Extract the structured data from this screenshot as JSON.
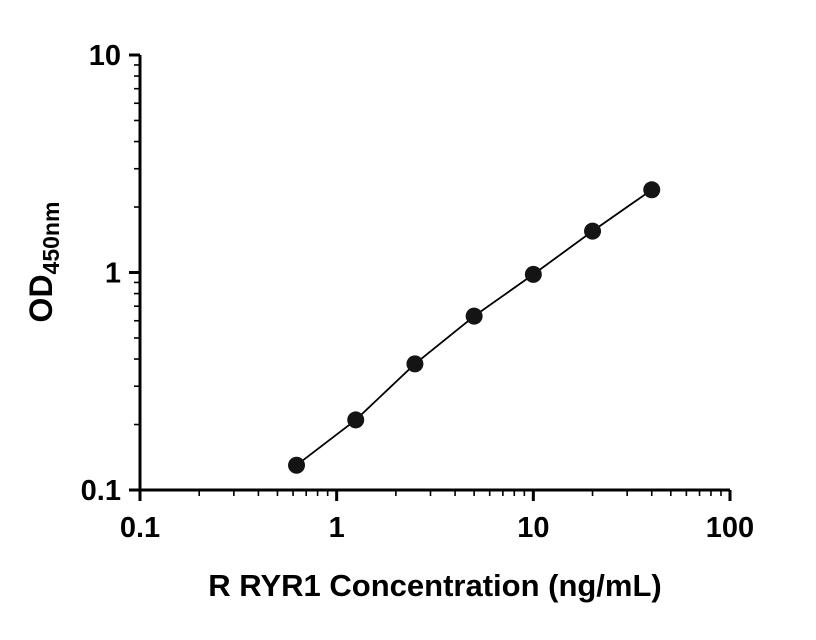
{
  "chart_data": {
    "type": "scatter",
    "title": "",
    "xlabel": "R RYR1 Concentration (ng/mL)",
    "ylabel_main": "OD",
    "ylabel_sub": "450nm",
    "xscale": "log",
    "yscale": "log",
    "xlim": [
      0.1,
      100
    ],
    "ylim": [
      0.1,
      10
    ],
    "grid": false,
    "legend": "none",
    "x": [
      0.625,
      1.25,
      2.5,
      5,
      10,
      20,
      40
    ],
    "y": [
      0.13,
      0.21,
      0.38,
      0.63,
      0.98,
      1.55,
      2.4
    ],
    "x_ticks": [
      {
        "v": 0.1,
        "label": "0.1"
      },
      {
        "v": 1,
        "label": "1"
      },
      {
        "v": 10,
        "label": "10"
      },
      {
        "v": 100,
        "label": "100"
      }
    ],
    "y_ticks": [
      {
        "v": 0.1,
        "label": "0.1"
      },
      {
        "v": 1,
        "label": "1"
      },
      {
        "v": 10,
        "label": "10"
      }
    ],
    "colors": {
      "axis": "#000000",
      "line": "#000000",
      "marker": "#141414",
      "background": "#ffffff"
    },
    "marker_radius": 8.5
  }
}
